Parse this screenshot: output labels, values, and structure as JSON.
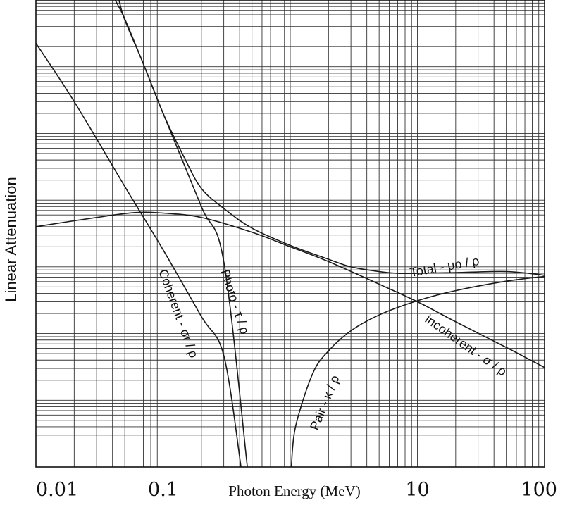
{
  "chart_data": {
    "type": "line",
    "title": "",
    "xlabel": "Photon Energy (MeV)",
    "ylabel": "Linear Attenuation",
    "x_scale": "log",
    "y_scale": "log",
    "xlim": [
      0.01,
      100
    ],
    "ylim": [
      0.0001,
      1000
    ],
    "x_ticks": [
      0.01,
      0.1,
      10,
      100
    ],
    "x_tick_labels": [
      "0.01",
      "0.1",
      "10",
      "100"
    ],
    "y_ticks_labeled": false,
    "grid": true,
    "legend": "none",
    "series": [
      {
        "name": "Coherent - σr / ρ",
        "x": [
          0.01,
          0.02,
          0.05,
          0.1,
          0.2,
          0.3,
          0.41
        ],
        "y": [
          225,
          30,
          1.6,
          0.18,
          0.018,
          0.0047,
          0.0001
        ]
      },
      {
        "name": "Photo - τ / ρ",
        "x": [
          0.042,
          0.05,
          0.07,
          0.1,
          0.2,
          0.3,
          0.46
        ],
        "y": [
          1000,
          520,
          110,
          20,
          0.8,
          0.12,
          0.0001
        ]
      },
      {
        "name": "incoherent - σ / ρ",
        "x": [
          0.01,
          0.03,
          0.06,
          0.1,
          0.2,
          0.5,
          1,
          2,
          5,
          10,
          20,
          50,
          100
        ],
        "y": [
          0.4,
          0.55,
          0.65,
          0.64,
          0.55,
          0.33,
          0.2,
          0.12,
          0.055,
          0.03,
          0.015,
          0.0062,
          0.0031
        ]
      },
      {
        "name": "Pair - κ / ρ",
        "x": [
          1.02,
          1.1,
          1.5,
          2,
          3,
          5,
          10,
          20,
          50,
          100
        ],
        "y": [
          0.0001,
          0.0004,
          0.0025,
          0.0055,
          0.011,
          0.019,
          0.031,
          0.044,
          0.061,
          0.072
        ]
      },
      {
        "name": "Total - μo / ρ",
        "x": [
          0.045,
          0.05,
          0.07,
          0.1,
          0.15,
          0.2,
          0.3,
          0.5,
          1,
          2,
          3,
          5,
          7,
          10,
          20,
          50,
          100
        ],
        "y": [
          1000,
          500,
          110,
          20,
          4,
          1.5,
          0.75,
          0.38,
          0.21,
          0.13,
          0.1,
          0.085,
          0.08,
          0.08,
          0.082,
          0.085,
          0.075
        ]
      }
    ],
    "annotations": [
      {
        "series": "Coherent - σr / ρ",
        "text": "Coherent - σr / ρ"
      },
      {
        "series": "Photo - τ / ρ",
        "text": "Photo - τ / ρ"
      },
      {
        "series": "incoherent - σ / ρ",
        "text": "incoherent - σ / ρ"
      },
      {
        "series": "Pair - κ / ρ",
        "text": "Pair - κ / ρ"
      },
      {
        "series": "Total - μo / ρ",
        "text": "Total - μo / ρ"
      }
    ]
  }
}
